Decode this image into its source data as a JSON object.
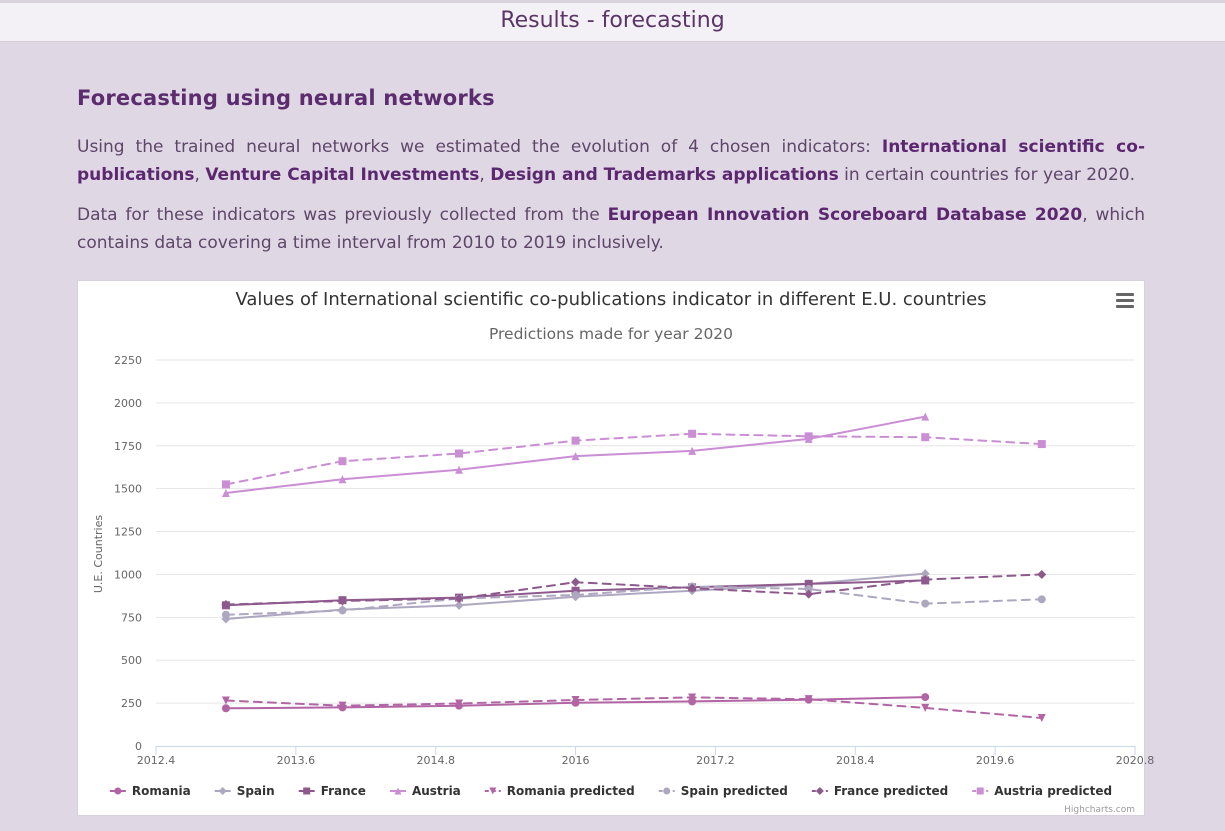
{
  "header": {
    "title": "Results - forecasting"
  },
  "section": {
    "heading": "Forecasting using neural networks",
    "p1": {
      "t1": "Using the trained neural networks we estimated the evolution of 4 chosen indicators: ",
      "b1": "International scientific co-publications",
      "t2": ", ",
      "b2": "Venture Capital Investments",
      "t3": ", ",
      "b3": "Design and Trademarks applications",
      "t4": " in certain countries for year 2020."
    },
    "p2": {
      "t1": "Data for these indicators was previously collected from the ",
      "b1": "European Innovation Scoreboard Database 2020",
      "t2": ", which contains data covering a time interval from 2010 to 2019 inclusively."
    }
  },
  "chart_data": {
    "type": "line",
    "title": "Values of International scientific co-publications indicator in different E.U. countries",
    "subtitle": "Predictions made for year 2020",
    "ylabel": "U.E. Countries",
    "xlabel": "",
    "xlim": [
      2012.4,
      2020.8
    ],
    "ylim": [
      0,
      2250
    ],
    "x_ticks": [
      "2012.4",
      "2013.6",
      "2014.8",
      "2016",
      "2017.2",
      "2018.4",
      "2019.6",
      "2020.8"
    ],
    "y_ticks": [
      "0",
      "250",
      "500",
      "750",
      "1000",
      "1250",
      "1500",
      "1750",
      "2000",
      "2250"
    ],
    "grid": true,
    "legend_position": "bottom",
    "credits": "Highcharts.com",
    "series": [
      {
        "name": "Romania",
        "color": "#b265a5",
        "dash": false,
        "marker": "circle",
        "x": [
          2013,
          2014,
          2015,
          2016,
          2017,
          2018,
          2019
        ],
        "y": [
          220,
          225,
          235,
          252,
          260,
          270,
          285
        ]
      },
      {
        "name": "Spain",
        "color": "#aea7c0",
        "dash": false,
        "marker": "diamond",
        "x": [
          2013,
          2014,
          2015,
          2016,
          2017,
          2018,
          2019
        ],
        "y": [
          740,
          795,
          820,
          870,
          905,
          945,
          1005
        ]
      },
      {
        "name": "France",
        "color": "#8e5a8e",
        "dash": false,
        "marker": "square",
        "x": [
          2013,
          2014,
          2015,
          2016,
          2017,
          2018,
          2019
        ],
        "y": [
          820,
          850,
          865,
          905,
          925,
          945,
          965
        ]
      },
      {
        "name": "Austria",
        "color": "#c98ed3",
        "dash": false,
        "marker": "triangle",
        "x": [
          2013,
          2014,
          2015,
          2016,
          2017,
          2018,
          2019
        ],
        "y": [
          1475,
          1555,
          1610,
          1690,
          1720,
          1790,
          1920
        ]
      },
      {
        "name": "Romania predicted",
        "color": "#b265a5",
        "dash": true,
        "marker": "triangle-down",
        "x": [
          2013,
          2014,
          2015,
          2016,
          2017,
          2018,
          2019,
          2020
        ],
        "y": [
          265,
          235,
          248,
          268,
          283,
          273,
          222,
          163
        ]
      },
      {
        "name": "Spain predicted",
        "color": "#aea7c0",
        "dash": true,
        "marker": "circle",
        "x": [
          2013,
          2014,
          2015,
          2016,
          2017,
          2018,
          2019,
          2020
        ],
        "y": [
          765,
          790,
          860,
          880,
          930,
          915,
          830,
          855
        ]
      },
      {
        "name": "France predicted",
        "color": "#8e5a8e",
        "dash": true,
        "marker": "diamond",
        "x": [
          2013,
          2014,
          2015,
          2016,
          2017,
          2018,
          2019,
          2020
        ],
        "y": [
          825,
          845,
          860,
          955,
          920,
          885,
          970,
          1000
        ]
      },
      {
        "name": "Austria predicted",
        "color": "#c98ed3",
        "dash": true,
        "marker": "square",
        "x": [
          2013,
          2014,
          2015,
          2016,
          2017,
          2018,
          2019,
          2020
        ],
        "y": [
          1525,
          1660,
          1705,
          1780,
          1820,
          1805,
          1800,
          1760
        ]
      }
    ]
  }
}
